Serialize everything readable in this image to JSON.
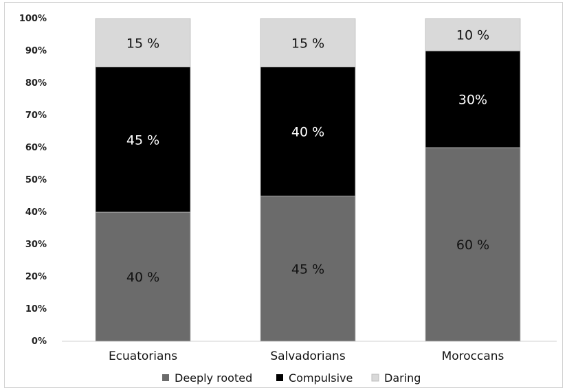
{
  "chart_data": {
    "type": "bar",
    "stacked": true,
    "categories": [
      "Ecuatorians",
      "Salvadorians",
      "Moroccans"
    ],
    "series": [
      {
        "name": "Deeply rooted",
        "values": [
          40,
          45,
          60
        ],
        "labels": [
          "40 %",
          "45 %",
          "60 %"
        ],
        "color": "#6b6b6b",
        "label_color": "#111111"
      },
      {
        "name": "Compulsive",
        "values": [
          45,
          40,
          30
        ],
        "labels": [
          "45 %",
          "40 %",
          "30%"
        ],
        "color": "#000000",
        "label_color": "#ffffff"
      },
      {
        "name": "Daring",
        "values": [
          15,
          15,
          10
        ],
        "labels": [
          "15 %",
          "15 %",
          "10 %"
        ],
        "color": "#d9d9d9",
        "label_color": "#111111"
      }
    ],
    "yticks": [
      "0%",
      "10%",
      "20%",
      "30%",
      "40%",
      "50%",
      "60%",
      "70%",
      "80%",
      "90%",
      "100%"
    ],
    "ylim": [
      0,
      100
    ],
    "grid": false,
    "legend_position": "bottom"
  }
}
